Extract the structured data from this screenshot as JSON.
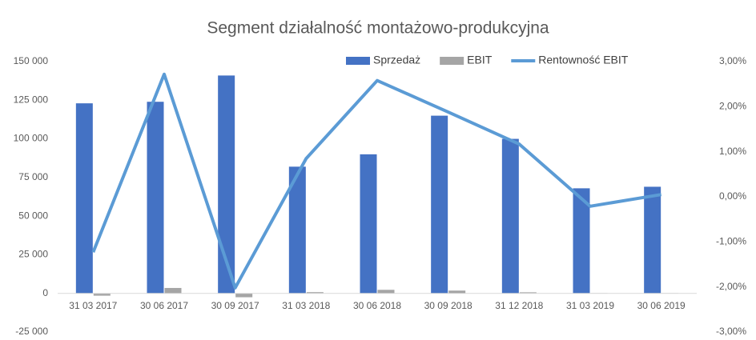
{
  "chart_data": {
    "type": "bar-line",
    "title": "Segment działalność montażowo-produkcyjna",
    "categories": [
      "31 03 2017",
      "30 06 2017",
      "30 09 2017",
      "31 03 2018",
      "30 06 2018",
      "30 09 2018",
      "31 12 2018",
      "31 03 2019",
      "30 06 2019"
    ],
    "series": [
      {
        "name": "Sprzedaż",
        "color": "#4472c4",
        "type": "bar",
        "values": [
          123000,
          124000,
          141000,
          82000,
          90000,
          115000,
          100000,
          68000,
          69000
        ]
      },
      {
        "name": "EBIT",
        "color": "#a5a5a5",
        "type": "bar",
        "values": [
          -1500,
          3500,
          -2500,
          800,
          2300,
          1800,
          700,
          200,
          200
        ]
      },
      {
        "name": "Rentowność EBIT",
        "color": "#5b9bd5",
        "type": "line",
        "axis": "y2",
        "values": [
          -1.23,
          2.72,
          -2.02,
          0.85,
          2.58,
          1.88,
          1.17,
          -0.21,
          0.05
        ]
      }
    ],
    "ylim": [
      -25000,
      150000
    ],
    "yticks": [
      {
        "value": -25000,
        "label": "-25 000"
      },
      0,
      {
        "value": 25000,
        "label": "25 000"
      },
      {
        "value": 50000,
        "label": "50 000"
      },
      {
        "value": 75000,
        "label": "75 000"
      },
      {
        "value": 100000,
        "label": "100 000"
      },
      {
        "value": 125000,
        "label": "125 000"
      },
      {
        "value": 150000,
        "label": "150 000"
      }
    ],
    "y2lim": [
      -3,
      3
    ],
    "y2ticks": [
      {
        "value": -3,
        "label": "-3,00%"
      },
      {
        "value": -2,
        "label": "-2,00%"
      },
      {
        "value": -1,
        "label": "-1,00%"
      },
      {
        "value": 0,
        "label": "0,00%"
      },
      {
        "value": 1,
        "label": "1,00%"
      },
      {
        "value": 2,
        "label": "2,00%"
      },
      {
        "value": 3,
        "label": "3,00%"
      }
    ],
    "grid": false,
    "legend": "top-right"
  }
}
